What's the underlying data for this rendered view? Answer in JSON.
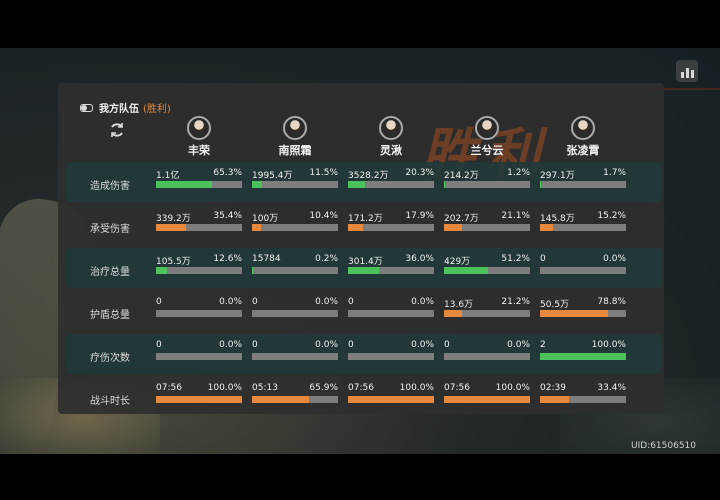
{
  "team": {
    "label": "我方队伍",
    "result": "(胜利)"
  },
  "victory_watermark": "胜利",
  "uid": "UID:61506510",
  "colors": {
    "green": "#4cc35a",
    "orange": "#e8883c",
    "bar_bg": "#7d7d7d"
  },
  "icons": {
    "stats": "bar-chart-icon",
    "refresh": "refresh-icon",
    "toggle": "toggle-icon"
  },
  "heroes": [
    {
      "name": "丰荣"
    },
    {
      "name": "南照霜"
    },
    {
      "name": "灵湫"
    },
    {
      "name": "兰兮云"
    },
    {
      "name": "张凌霄"
    }
  ],
  "rows": [
    {
      "label": "造成伤害",
      "color": "#4cc35a",
      "highlight": true,
      "cells": [
        {
          "value": "1.1亿",
          "percent": "65.3%",
          "fraction": 0.653
        },
        {
          "value": "1995.4万",
          "percent": "11.5%",
          "fraction": 0.115
        },
        {
          "value": "3528.2万",
          "percent": "20.3%",
          "fraction": 0.203
        },
        {
          "value": "214.2万",
          "percent": "1.2%",
          "fraction": 0.012
        },
        {
          "value": "297.1万",
          "percent": "1.7%",
          "fraction": 0.017
        }
      ]
    },
    {
      "label": "承受伤害",
      "color": "#e8883c",
      "highlight": false,
      "cells": [
        {
          "value": "339.2万",
          "percent": "35.4%",
          "fraction": 0.354
        },
        {
          "value": "100万",
          "percent": "10.4%",
          "fraction": 0.104
        },
        {
          "value": "171.2万",
          "percent": "17.9%",
          "fraction": 0.179
        },
        {
          "value": "202.7万",
          "percent": "21.1%",
          "fraction": 0.211
        },
        {
          "value": "145.8万",
          "percent": "15.2%",
          "fraction": 0.152
        }
      ]
    },
    {
      "label": "治疗总量",
      "color": "#4cc35a",
      "highlight": true,
      "cells": [
        {
          "value": "105.5万",
          "percent": "12.6%",
          "fraction": 0.126
        },
        {
          "value": "15784",
          "percent": "0.2%",
          "fraction": 0.002
        },
        {
          "value": "301.4万",
          "percent": "36.0%",
          "fraction": 0.36
        },
        {
          "value": "429万",
          "percent": "51.2%",
          "fraction": 0.512
        },
        {
          "value": "0",
          "percent": "0.0%",
          "fraction": 0.0
        }
      ]
    },
    {
      "label": "护盾总量",
      "color": "#e8883c",
      "highlight": false,
      "cells": [
        {
          "value": "0",
          "percent": "0.0%",
          "fraction": 0.0
        },
        {
          "value": "0",
          "percent": "0.0%",
          "fraction": 0.0
        },
        {
          "value": "0",
          "percent": "0.0%",
          "fraction": 0.0
        },
        {
          "value": "13.6万",
          "percent": "21.2%",
          "fraction": 0.212
        },
        {
          "value": "50.5万",
          "percent": "78.8%",
          "fraction": 0.788
        }
      ]
    },
    {
      "label": "疗伤次数",
      "color": "#4cc35a",
      "highlight": true,
      "cells": [
        {
          "value": "0",
          "percent": "0.0%",
          "fraction": 0.0
        },
        {
          "value": "0",
          "percent": "0.0%",
          "fraction": 0.0
        },
        {
          "value": "0",
          "percent": "0.0%",
          "fraction": 0.0
        },
        {
          "value": "0",
          "percent": "0.0%",
          "fraction": 0.0
        },
        {
          "value": "2",
          "percent": "100.0%",
          "fraction": 1.0
        }
      ]
    },
    {
      "label": "战斗时长",
      "color": "#e8883c",
      "highlight": false,
      "cells": [
        {
          "value": "07:56",
          "percent": "100.0%",
          "fraction": 1.0
        },
        {
          "value": "05:13",
          "percent": "65.9%",
          "fraction": 0.659
        },
        {
          "value": "07:56",
          "percent": "100.0%",
          "fraction": 1.0
        },
        {
          "value": "07:56",
          "percent": "100.0%",
          "fraction": 1.0
        },
        {
          "value": "02:39",
          "percent": "33.4%",
          "fraction": 0.334
        }
      ]
    }
  ]
}
